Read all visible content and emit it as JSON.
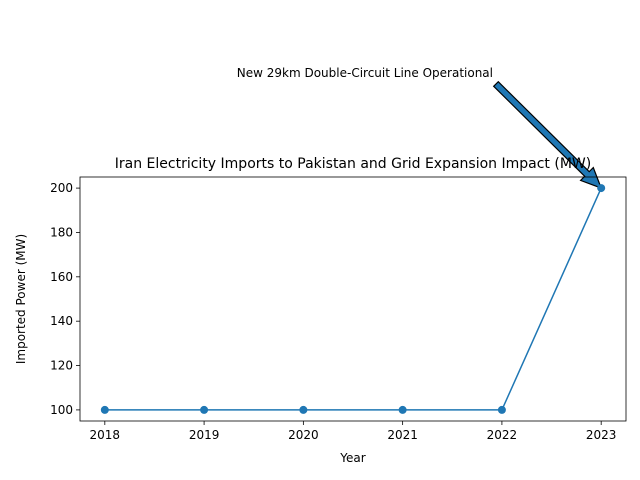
{
  "chart_data": {
    "type": "line",
    "title": "Iran Electricity Imports to Pakistan and Grid Expansion Impact (MW)",
    "xlabel": "Year",
    "ylabel": "Imported Power (MW)",
    "x": [
      2018,
      2019,
      2020,
      2021,
      2022,
      2023
    ],
    "x_tick_labels": [
      "2018",
      "2019",
      "2020",
      "2021",
      "2022",
      "2023"
    ],
    "y_ticks": [
      100,
      120,
      140,
      160,
      180,
      200
    ],
    "y_tick_labels": [
      "100",
      "120",
      "140",
      "160",
      "180",
      "200"
    ],
    "xlim": [
      2017.75,
      2023.25
    ],
    "ylim": [
      95,
      205
    ],
    "grid": false,
    "series": [
      {
        "name": "Imported Power (MW)",
        "values": [
          100,
          100,
          100,
          100,
          100,
          200
        ],
        "color": "#1f77b4",
        "marker": "circle"
      }
    ],
    "annotations": [
      {
        "text": "New 29km Double-Circuit Line Operational",
        "target": {
          "x": 2023,
          "y": 200
        },
        "arrow_color": "#1f77b4",
        "arrow_edge_color": "#000000"
      }
    ]
  }
}
